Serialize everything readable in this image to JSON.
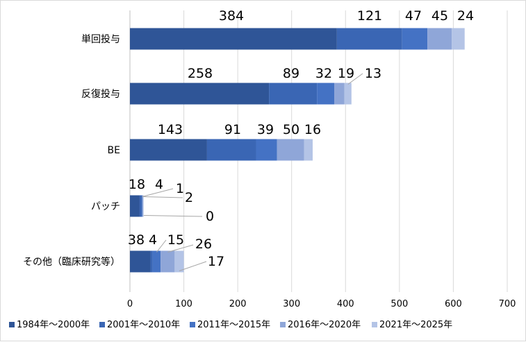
{
  "chart_data": {
    "type": "bar",
    "orientation": "horizontal",
    "stacked": true,
    "title": "",
    "xlabel": "",
    "ylabel": "",
    "xlim": [
      0,
      700
    ],
    "x_ticks": [
      0,
      100,
      200,
      300,
      400,
      500,
      600,
      700
    ],
    "grid": "vertical",
    "legend_position": "bottom",
    "categories": [
      "単回投与",
      "反復投与",
      "BE",
      "パッチ",
      "その他（臨床研究等）"
    ],
    "series": [
      {
        "name": "1984年～2000年",
        "color": "#2f5597",
        "values": [
          384,
          258,
          143,
          18,
          38
        ]
      },
      {
        "name": "2001年～2010年",
        "color": "#3a66b4",
        "values": [
          121,
          89,
          91,
          4,
          4
        ]
      },
      {
        "name": "2011年～2015年",
        "color": "#4472c4",
        "values": [
          47,
          32,
          39,
          1,
          15
        ]
      },
      {
        "name": "2016年～2020年",
        "color": "#8fa6d8",
        "values": [
          45,
          19,
          50,
          2,
          26
        ]
      },
      {
        "name": "2021年～2025年",
        "color": "#b4c4e6",
        "values": [
          24,
          13,
          16,
          0,
          17
        ]
      }
    ]
  }
}
